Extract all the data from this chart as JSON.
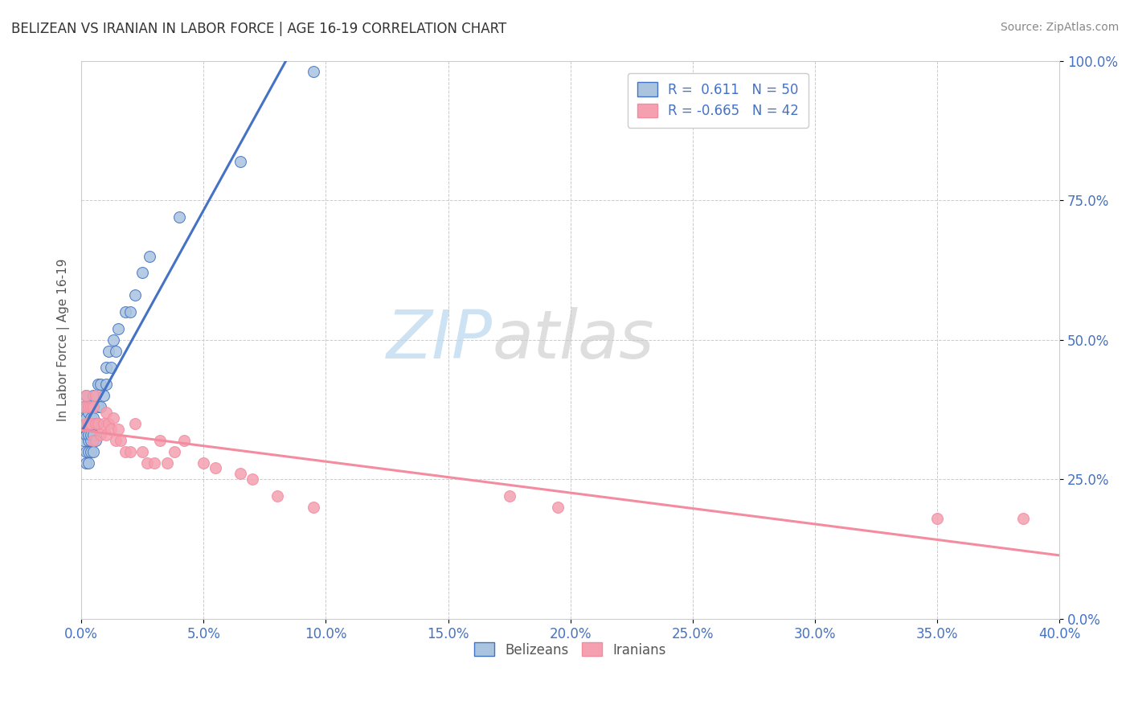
{
  "title": "BELIZEAN VS IRANIAN IN LABOR FORCE | AGE 16-19 CORRELATION CHART",
  "source": "Source: ZipAtlas.com",
  "xlabel": "",
  "ylabel": "In Labor Force | Age 16-19",
  "xlim": [
    0.0,
    0.4
  ],
  "ylim": [
    0.0,
    1.0
  ],
  "xticks": [
    0.0,
    0.05,
    0.1,
    0.15,
    0.2,
    0.25,
    0.3,
    0.35,
    0.4
  ],
  "yticks": [
    0.0,
    0.25,
    0.5,
    0.75,
    1.0
  ],
  "belizean_color": "#aac4e0",
  "iranian_color": "#f4a0b0",
  "belizean_line_color": "#4472c4",
  "iranian_line_color": "#f48ca0",
  "R_belizean": 0.611,
  "N_belizean": 50,
  "R_iranian": -0.665,
  "N_iranian": 42,
  "belizean_x": [
    0.001,
    0.001,
    0.001,
    0.001,
    0.001,
    0.002,
    0.002,
    0.002,
    0.002,
    0.002,
    0.002,
    0.002,
    0.003,
    0.003,
    0.003,
    0.003,
    0.003,
    0.003,
    0.004,
    0.004,
    0.004,
    0.004,
    0.004,
    0.005,
    0.005,
    0.005,
    0.005,
    0.006,
    0.006,
    0.007,
    0.007,
    0.007,
    0.008,
    0.008,
    0.009,
    0.01,
    0.01,
    0.011,
    0.012,
    0.013,
    0.014,
    0.015,
    0.018,
    0.02,
    0.022,
    0.025,
    0.028,
    0.04,
    0.065,
    0.095
  ],
  "belizean_y": [
    0.32,
    0.34,
    0.35,
    0.36,
    0.38,
    0.28,
    0.3,
    0.33,
    0.35,
    0.36,
    0.38,
    0.4,
    0.28,
    0.3,
    0.32,
    0.33,
    0.35,
    0.37,
    0.3,
    0.32,
    0.33,
    0.36,
    0.38,
    0.3,
    0.33,
    0.36,
    0.4,
    0.32,
    0.35,
    0.35,
    0.38,
    0.42,
    0.38,
    0.42,
    0.4,
    0.42,
    0.45,
    0.48,
    0.45,
    0.5,
    0.48,
    0.52,
    0.55,
    0.55,
    0.58,
    0.62,
    0.65,
    0.72,
    0.82,
    0.98
  ],
  "iranian_x": [
    0.001,
    0.002,
    0.002,
    0.003,
    0.003,
    0.004,
    0.004,
    0.005,
    0.005,
    0.006,
    0.006,
    0.007,
    0.008,
    0.009,
    0.01,
    0.01,
    0.011,
    0.012,
    0.013,
    0.014,
    0.015,
    0.016,
    0.018,
    0.02,
    0.022,
    0.025,
    0.027,
    0.03,
    0.032,
    0.035,
    0.038,
    0.042,
    0.05,
    0.055,
    0.065,
    0.07,
    0.08,
    0.095,
    0.175,
    0.195,
    0.35,
    0.385
  ],
  "iranian_y": [
    0.38,
    0.35,
    0.4,
    0.35,
    0.38,
    0.35,
    0.38,
    0.32,
    0.38,
    0.35,
    0.4,
    0.35,
    0.33,
    0.35,
    0.33,
    0.37,
    0.35,
    0.34,
    0.36,
    0.32,
    0.34,
    0.32,
    0.3,
    0.3,
    0.35,
    0.3,
    0.28,
    0.28,
    0.32,
    0.28,
    0.3,
    0.32,
    0.28,
    0.27,
    0.26,
    0.25,
    0.22,
    0.2,
    0.22,
    0.2,
    0.18,
    0.18
  ],
  "watermark_zip": "ZIP",
  "watermark_atlas": "atlas",
  "background_color": "#ffffff",
  "grid_color": "#cccccc"
}
